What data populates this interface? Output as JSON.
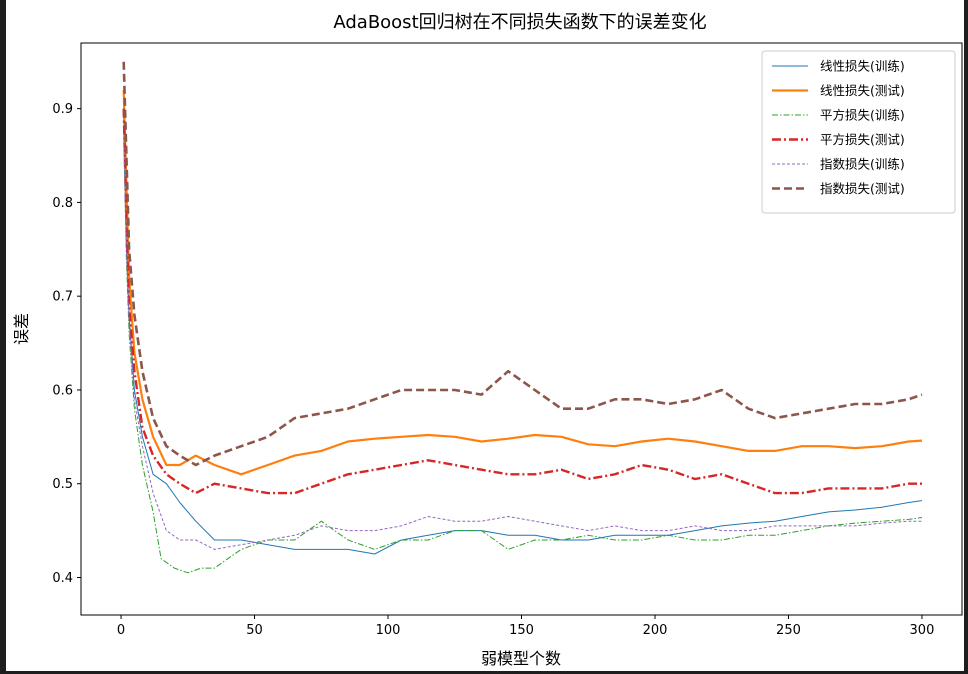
{
  "chart_data": {
    "type": "line",
    "title": "AdaBoost回归树在不同损失函数下的误差变化",
    "xlabel": "弱模型个数",
    "ylabel": "误差",
    "xlim": [
      -15,
      315
    ],
    "ylim": [
      0.36,
      0.97
    ],
    "xticks": [
      0,
      50,
      100,
      150,
      200,
      250,
      300
    ],
    "yticks": [
      0.4,
      0.5,
      0.6,
      0.7,
      0.8,
      0.9
    ],
    "grid": false,
    "legend_position": "top-right",
    "series": [
      {
        "name": "线性损失(训练)",
        "color": "#1f77b4",
        "style": "solid-thin",
        "x": [
          1,
          2,
          3,
          5,
          8,
          12,
          17,
          22,
          28,
          35,
          45,
          55,
          65,
          75,
          85,
          95,
          105,
          115,
          125,
          135,
          145,
          155,
          165,
          175,
          185,
          195,
          205,
          215,
          225,
          235,
          245,
          255,
          265,
          275,
          285,
          295,
          300
        ],
        "y": [
          0.89,
          0.76,
          0.68,
          0.6,
          0.55,
          0.51,
          0.5,
          0.48,
          0.46,
          0.44,
          0.44,
          0.435,
          0.43,
          0.43,
          0.43,
          0.425,
          0.44,
          0.445,
          0.45,
          0.45,
          0.445,
          0.445,
          0.44,
          0.44,
          0.445,
          0.445,
          0.445,
          0.45,
          0.455,
          0.458,
          0.46,
          0.465,
          0.47,
          0.472,
          0.475,
          0.48,
          0.482
        ]
      },
      {
        "name": "线性损失(测试)",
        "color": "#ff7f0e",
        "style": "solid-thick",
        "x": [
          1,
          2,
          3,
          5,
          8,
          12,
          17,
          22,
          28,
          35,
          45,
          55,
          65,
          75,
          85,
          95,
          105,
          115,
          125,
          135,
          145,
          155,
          165,
          175,
          185,
          195,
          205,
          215,
          225,
          235,
          245,
          255,
          265,
          275,
          285,
          295,
          300
        ],
        "y": [
          0.92,
          0.82,
          0.72,
          0.64,
          0.59,
          0.55,
          0.52,
          0.52,
          0.53,
          0.52,
          0.51,
          0.52,
          0.53,
          0.535,
          0.545,
          0.548,
          0.55,
          0.552,
          0.55,
          0.545,
          0.548,
          0.552,
          0.55,
          0.542,
          0.54,
          0.545,
          0.548,
          0.545,
          0.54,
          0.535,
          0.535,
          0.54,
          0.54,
          0.538,
          0.54,
          0.545,
          0.546
        ]
      },
      {
        "name": "平方损失(训练)",
        "color": "#2ca02c",
        "style": "dashdot-thin",
        "x": [
          1,
          2,
          3,
          5,
          8,
          12,
          15,
          20,
          25,
          30,
          35,
          40,
          45,
          55,
          65,
          75,
          85,
          95,
          105,
          115,
          125,
          135,
          145,
          155,
          165,
          175,
          185,
          195,
          205,
          215,
          225,
          235,
          245,
          255,
          265,
          275,
          285,
          295,
          300
        ],
        "y": [
          0.88,
          0.74,
          0.66,
          0.58,
          0.52,
          0.47,
          0.42,
          0.41,
          0.405,
          0.41,
          0.41,
          0.42,
          0.43,
          0.44,
          0.44,
          0.46,
          0.44,
          0.43,
          0.44,
          0.44,
          0.45,
          0.45,
          0.43,
          0.44,
          0.44,
          0.445,
          0.44,
          0.44,
          0.445,
          0.44,
          0.44,
          0.445,
          0.445,
          0.45,
          0.455,
          0.458,
          0.46,
          0.462,
          0.464
        ]
      },
      {
        "name": "平方损失(测试)",
        "color": "#d62728",
        "style": "dashdot-thick",
        "x": [
          1,
          2,
          3,
          5,
          8,
          12,
          17,
          22,
          28,
          35,
          45,
          55,
          65,
          75,
          85,
          95,
          105,
          115,
          125,
          135,
          145,
          155,
          165,
          175,
          185,
          195,
          205,
          215,
          225,
          235,
          245,
          255,
          265,
          275,
          285,
          295,
          300
        ],
        "y": [
          0.9,
          0.78,
          0.69,
          0.62,
          0.56,
          0.53,
          0.51,
          0.5,
          0.49,
          0.5,
          0.495,
          0.49,
          0.49,
          0.5,
          0.51,
          0.515,
          0.52,
          0.525,
          0.52,
          0.515,
          0.51,
          0.51,
          0.515,
          0.505,
          0.51,
          0.52,
          0.515,
          0.505,
          0.51,
          0.5,
          0.49,
          0.49,
          0.495,
          0.495,
          0.495,
          0.5,
          0.5
        ]
      },
      {
        "name": "指数损失(训练)",
        "color": "#9467bd",
        "style": "dashed-thin",
        "x": [
          1,
          2,
          3,
          5,
          8,
          12,
          17,
          22,
          28,
          35,
          45,
          55,
          65,
          75,
          85,
          95,
          105,
          115,
          125,
          135,
          145,
          155,
          165,
          175,
          185,
          195,
          205,
          215,
          225,
          235,
          245,
          255,
          265,
          275,
          285,
          295,
          300
        ],
        "y": [
          0.87,
          0.75,
          0.67,
          0.59,
          0.54,
          0.49,
          0.45,
          0.44,
          0.44,
          0.43,
          0.435,
          0.44,
          0.445,
          0.455,
          0.45,
          0.45,
          0.455,
          0.465,
          0.46,
          0.46,
          0.465,
          0.46,
          0.455,
          0.45,
          0.455,
          0.45,
          0.45,
          0.455,
          0.45,
          0.45,
          0.455,
          0.455,
          0.455,
          0.455,
          0.458,
          0.46,
          0.46
        ]
      },
      {
        "name": "指数损失(测试)",
        "color": "#8c564b",
        "style": "dashed-thick",
        "x": [
          1,
          2,
          3,
          5,
          8,
          12,
          17,
          22,
          28,
          35,
          45,
          55,
          65,
          75,
          85,
          95,
          105,
          115,
          125,
          135,
          145,
          155,
          165,
          175,
          185,
          195,
          205,
          215,
          225,
          235,
          245,
          255,
          265,
          275,
          285,
          295,
          300
        ],
        "y": [
          0.95,
          0.85,
          0.75,
          0.68,
          0.62,
          0.57,
          0.54,
          0.53,
          0.52,
          0.53,
          0.54,
          0.55,
          0.57,
          0.575,
          0.58,
          0.59,
          0.6,
          0.6,
          0.6,
          0.595,
          0.62,
          0.6,
          0.58,
          0.58,
          0.59,
          0.59,
          0.585,
          0.59,
          0.6,
          0.58,
          0.57,
          0.575,
          0.58,
          0.585,
          0.585,
          0.59,
          0.595
        ]
      }
    ]
  }
}
